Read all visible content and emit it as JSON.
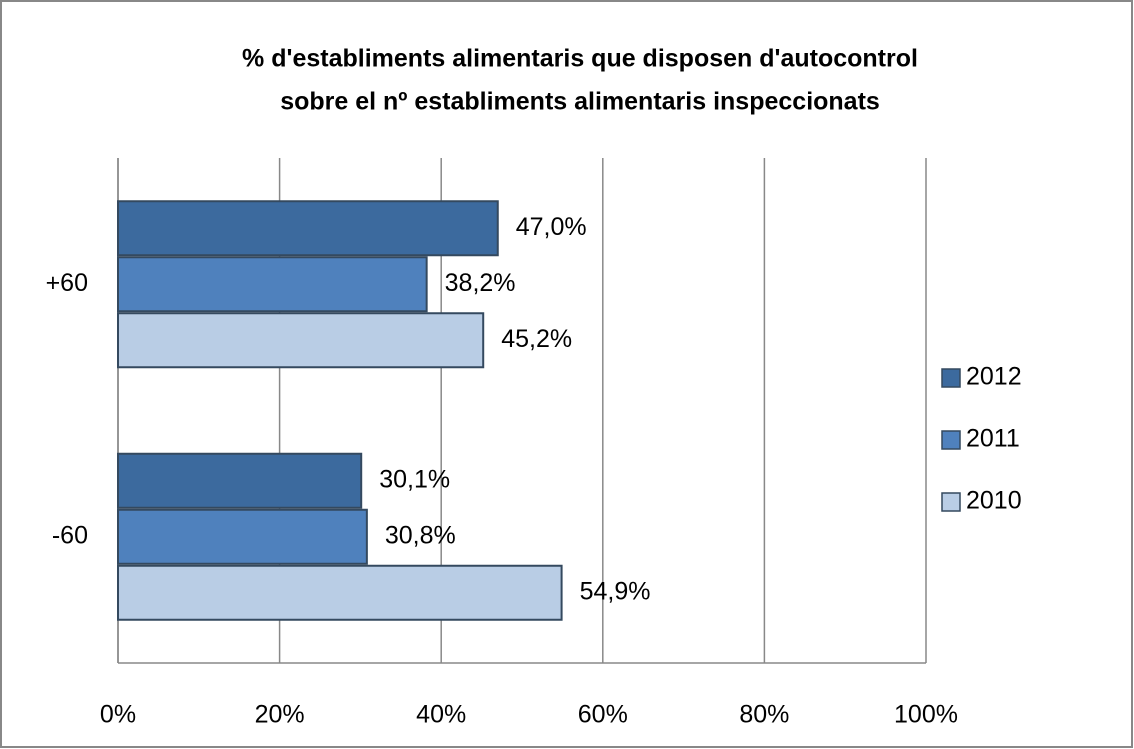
{
  "chart_data": {
    "type": "barh",
    "title": [
      "% d'establiments alimentaris que disposen d'autocontrol",
      "sobre el nº establiments alimentaris inspeccionats"
    ],
    "categories": [
      "+60",
      "-60"
    ],
    "series": [
      {
        "name": "2012",
        "color": "#3c6a9e",
        "values": [
          47.0,
          30.1
        ],
        "value_labels": [
          "47,0%",
          "30,1%"
        ]
      },
      {
        "name": "2011",
        "color": "#4f81bd",
        "values": [
          38.2,
          30.8
        ],
        "value_labels": [
          "38,2%",
          "30,8%"
        ]
      },
      {
        "name": "2010",
        "color": "#b9cde5",
        "values": [
          45.2,
          54.9
        ],
        "value_labels": [
          "45,2%",
          "54,9%"
        ]
      }
    ],
    "xlim": [
      0,
      100
    ],
    "xticks": [
      {
        "value": 0,
        "label": "0%"
      },
      {
        "value": 20,
        "label": "20%"
      },
      {
        "value": 40,
        "label": "40%"
      },
      {
        "value": 60,
        "label": "60%"
      },
      {
        "value": 80,
        "label": "80%"
      },
      {
        "value": 100,
        "label": "100%"
      }
    ],
    "grid": true,
    "legend": "right"
  }
}
